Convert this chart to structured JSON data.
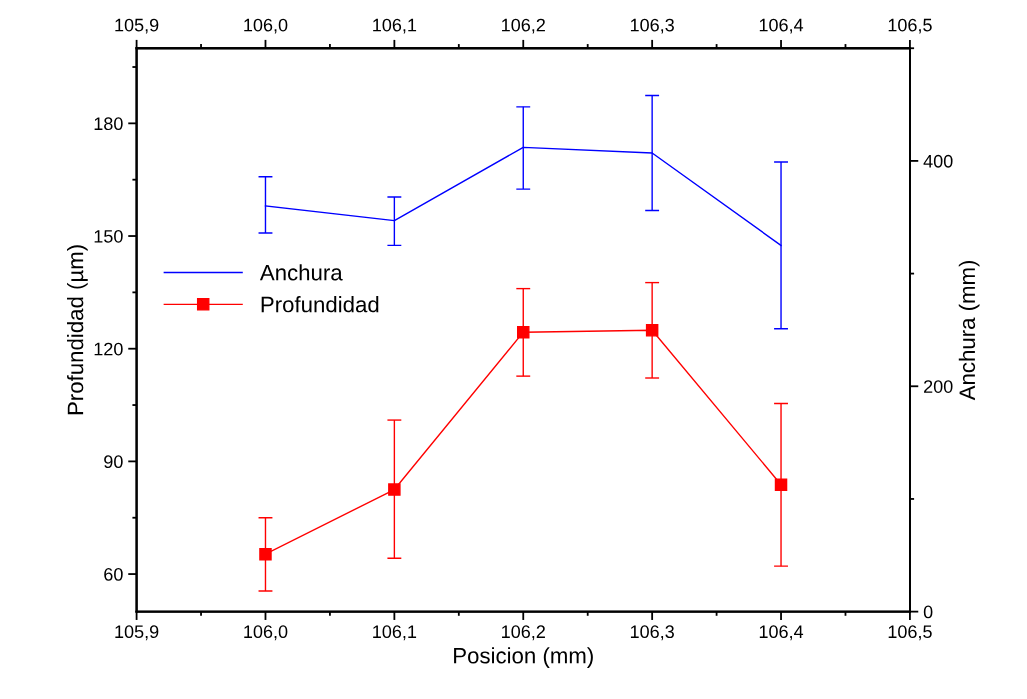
{
  "chart_data": {
    "type": "line",
    "xlabel": "Posicion (mm)",
    "ylabel": "Profundidad (µm)",
    "y2label": "Anchura (mm)",
    "x": [
      106.0,
      106.1,
      106.2,
      106.3,
      106.4
    ],
    "series": [
      {
        "name": "Anchura",
        "color": "#0000ff",
        "axis": "y2",
        "marker": "none",
        "values": [
          360,
          347,
          412,
          407,
          325
        ],
        "errors": [
          [
            336,
            386
          ],
          [
            325,
            368
          ],
          [
            375,
            448
          ],
          [
            356,
            458
          ],
          [
            251,
            399
          ]
        ]
      },
      {
        "name": "Profundidad",
        "color": "#ff0000",
        "axis": "y",
        "marker": "square",
        "values": [
          65.3,
          82.5,
          124.4,
          124.9,
          83.8
        ],
        "errors": [
          [
            55.5,
            75.0
          ],
          [
            64.2,
            101.0
          ],
          [
            112.7,
            136.0
          ],
          [
            112.2,
            137.6
          ],
          [
            62.1,
            105.4
          ]
        ]
      }
    ],
    "xlim": [
      105.9,
      106.5
    ],
    "xticks": [
      {
        "value": 105.9,
        "label": "105,9"
      },
      {
        "value": 106.0,
        "label": "106,0"
      },
      {
        "value": 106.1,
        "label": "106,1"
      },
      {
        "value": 106.2,
        "label": "106,2"
      },
      {
        "value": 106.3,
        "label": "106,3"
      },
      {
        "value": 106.4,
        "label": "106,4"
      },
      {
        "value": 106.5,
        "label": "106,5"
      }
    ],
    "x2lim": [
      105.9,
      106.5
    ],
    "x2ticks": [
      {
        "value": 105.9,
        "label": "105,9"
      },
      {
        "value": 106.0,
        "label": "106,0"
      },
      {
        "value": 106.1,
        "label": "106,1"
      },
      {
        "value": 106.2,
        "label": "106,2"
      },
      {
        "value": 106.3,
        "label": "106,3"
      },
      {
        "value": 106.4,
        "label": "106,4"
      },
      {
        "value": 106.5,
        "label": "106,5"
      }
    ],
    "ylim": [
      50,
      200
    ],
    "yticks": [
      60,
      90,
      120,
      150,
      180
    ],
    "y2lim": [
      0,
      500
    ],
    "y2ticks": [
      0,
      200,
      400
    ],
    "legend": "left",
    "grid": false,
    "line_style": "solid"
  }
}
